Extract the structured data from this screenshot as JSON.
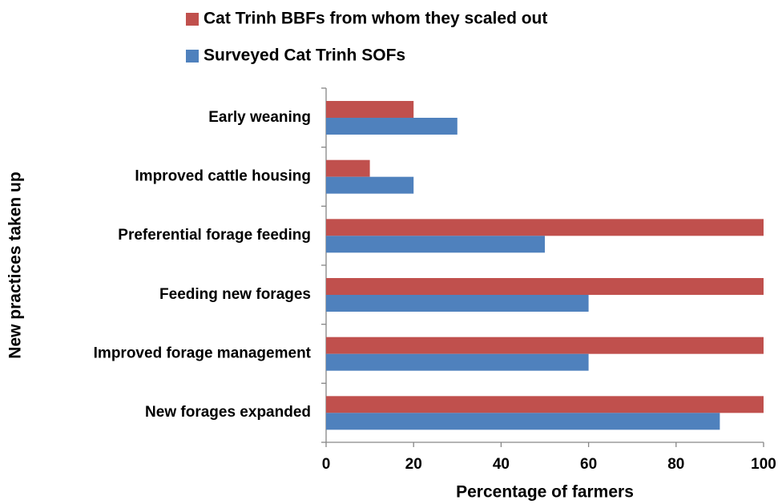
{
  "chart_data": {
    "type": "hbar",
    "categories": [
      "Early weaning",
      "Improved cattle housing",
      "Preferential forage feeding",
      "Feeding new forages",
      "Improved forage management",
      "New forages expanded"
    ],
    "series": [
      {
        "name": "Cat Trinh BBFs from whom they scaled out",
        "color": "#c0504d",
        "values": [
          20,
          10,
          100,
          100,
          100,
          100
        ]
      },
      {
        "name": "Surveyed Cat Trinh SOFs",
        "color": "#4f81bd",
        "values": [
          30,
          20,
          50,
          60,
          60,
          90
        ]
      }
    ],
    "xlabel": "Percentage of farmers",
    "ylabel": "New practices taken up",
    "xlim": [
      0,
      100
    ],
    "xticks": [
      0,
      20,
      40,
      60,
      80,
      100
    ],
    "grid": false,
    "legend": "top"
  }
}
